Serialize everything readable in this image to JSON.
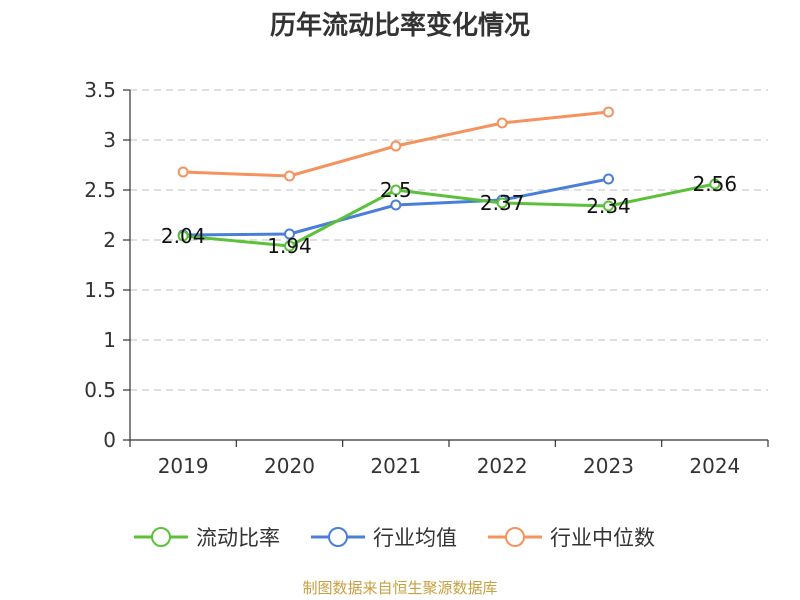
{
  "chart_data": {
    "type": "line",
    "title": "历年流动比率变化情况",
    "xlabel": "",
    "ylabel": "",
    "categories": [
      "2019",
      "2020",
      "2021",
      "2022",
      "2023",
      "2024"
    ],
    "ylim": [
      0,
      3.5
    ],
    "yticks": [
      "0",
      "0.5",
      "1",
      "1.5",
      "2",
      "2.5",
      "3",
      "3.5"
    ],
    "grid": true,
    "legend_position": "bottom",
    "series": [
      {
        "name": "流动比率",
        "color": "#5cc13a",
        "values": [
          2.04,
          1.94,
          2.5,
          2.37,
          2.34,
          2.56
        ],
        "labels": [
          "2.04",
          "1.94",
          "2.5",
          "2.37",
          "2.34",
          "2.56"
        ]
      },
      {
        "name": "行业均值",
        "color": "#4a7fd8",
        "values": [
          2.05,
          2.06,
          2.35,
          2.4,
          2.61,
          null
        ],
        "labels": []
      },
      {
        "name": "行业中位数",
        "color": "#f5925e",
        "values": [
          2.68,
          2.64,
          2.94,
          3.17,
          3.28,
          null
        ],
        "labels": []
      }
    ]
  },
  "source": "制图数据来自恒生聚源数据库"
}
